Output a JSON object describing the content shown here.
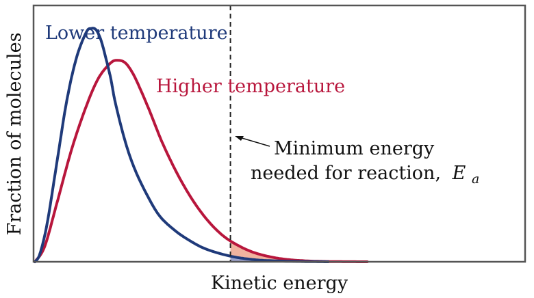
{
  "chart_data": {
    "type": "line",
    "xlabel": "Kinetic energy",
    "ylabel": "Fraction of molecules",
    "xlim": [
      0,
      1
    ],
    "ylim": [
      0,
      1
    ],
    "grid": false,
    "legend": "none",
    "series": [
      {
        "name": "Lower temperature",
        "color": "#1f3a7a",
        "x": [
          0.0,
          0.01,
          0.025,
          0.045,
          0.065,
          0.085,
          0.105,
          0.115,
          0.125,
          0.135,
          0.145,
          0.155,
          0.165,
          0.185,
          0.205,
          0.23,
          0.255,
          0.285,
          0.315,
          0.35,
          0.4,
          0.45,
          0.5,
          0.55,
          0.6
        ],
        "y": [
          0.0,
          0.03,
          0.15,
          0.39,
          0.63,
          0.8,
          0.9,
          0.915,
          0.91,
          0.87,
          0.8,
          0.72,
          0.62,
          0.47,
          0.36,
          0.26,
          0.18,
          0.125,
          0.085,
          0.05,
          0.022,
          0.008,
          0.003,
          0.001,
          0.0
        ]
      },
      {
        "name": "Higher temperature",
        "color": "#b8163c",
        "x": [
          0.0,
          0.02,
          0.045,
          0.075,
          0.105,
          0.13,
          0.155,
          0.17,
          0.185,
          0.2,
          0.215,
          0.235,
          0.26,
          0.29,
          0.32,
          0.35,
          0.38,
          0.41,
          0.45,
          0.5,
          0.55,
          0.6,
          0.65,
          0.68
        ],
        "y": [
          0.0,
          0.06,
          0.23,
          0.44,
          0.61,
          0.72,
          0.78,
          0.79,
          0.78,
          0.74,
          0.68,
          0.59,
          0.47,
          0.35,
          0.25,
          0.17,
          0.11,
          0.07,
          0.035,
          0.013,
          0.004,
          0.001,
          0.0002,
          0.0
        ]
      }
    ],
    "threshold": {
      "x": 0.4
    },
    "annotations": {
      "ea_main": "Minimum energy",
      "ea_line2": "needed for reaction,",
      "ea_symbol": "E",
      "ea_subscript": "a"
    },
    "shading": {
      "higher_color": "#f0b39f",
      "lower_color": "#9ea4cc"
    }
  }
}
